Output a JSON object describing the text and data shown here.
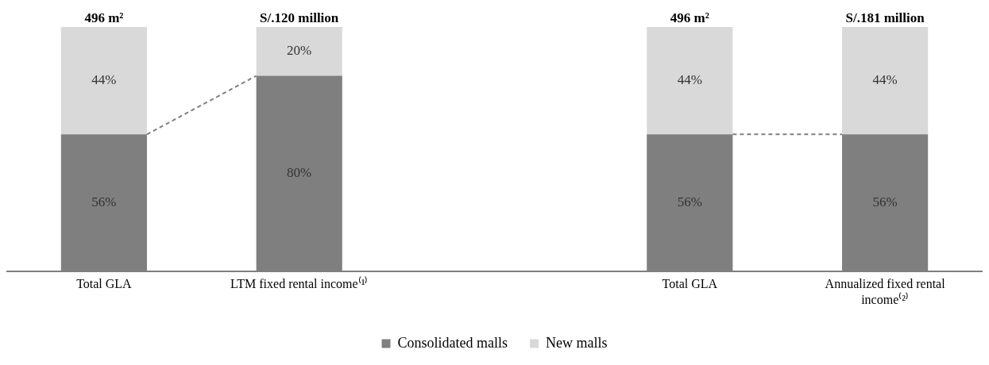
{
  "chart_data": {
    "type": "bar",
    "stacked": true,
    "categories": [
      "Total GLA",
      "LTM fixed rental income⁽¹⁾",
      null,
      "Total GLA",
      "Annualized fixed rental income⁽²⁾"
    ],
    "series": [
      {
        "name": "Consolidated malls",
        "color": "#7f7f7f",
        "values": [
          56,
          80,
          null,
          56,
          56
        ],
        "value_labels": [
          "56%",
          "80%",
          null,
          "56%",
          "56%"
        ]
      },
      {
        "name": "New malls",
        "color": "#d9d9d9",
        "values": [
          44,
          20,
          null,
          44,
          44
        ],
        "value_labels": [
          "44%",
          "20%",
          null,
          "44%",
          "44%"
        ]
      }
    ],
    "annotations": [
      "496 m²",
      "S/.120 million",
      "496 m²",
      "S/.181 million"
    ],
    "ylim": [
      0,
      100
    ],
    "tick_labels": "x",
    "grid": false,
    "legend": "bottom"
  }
}
